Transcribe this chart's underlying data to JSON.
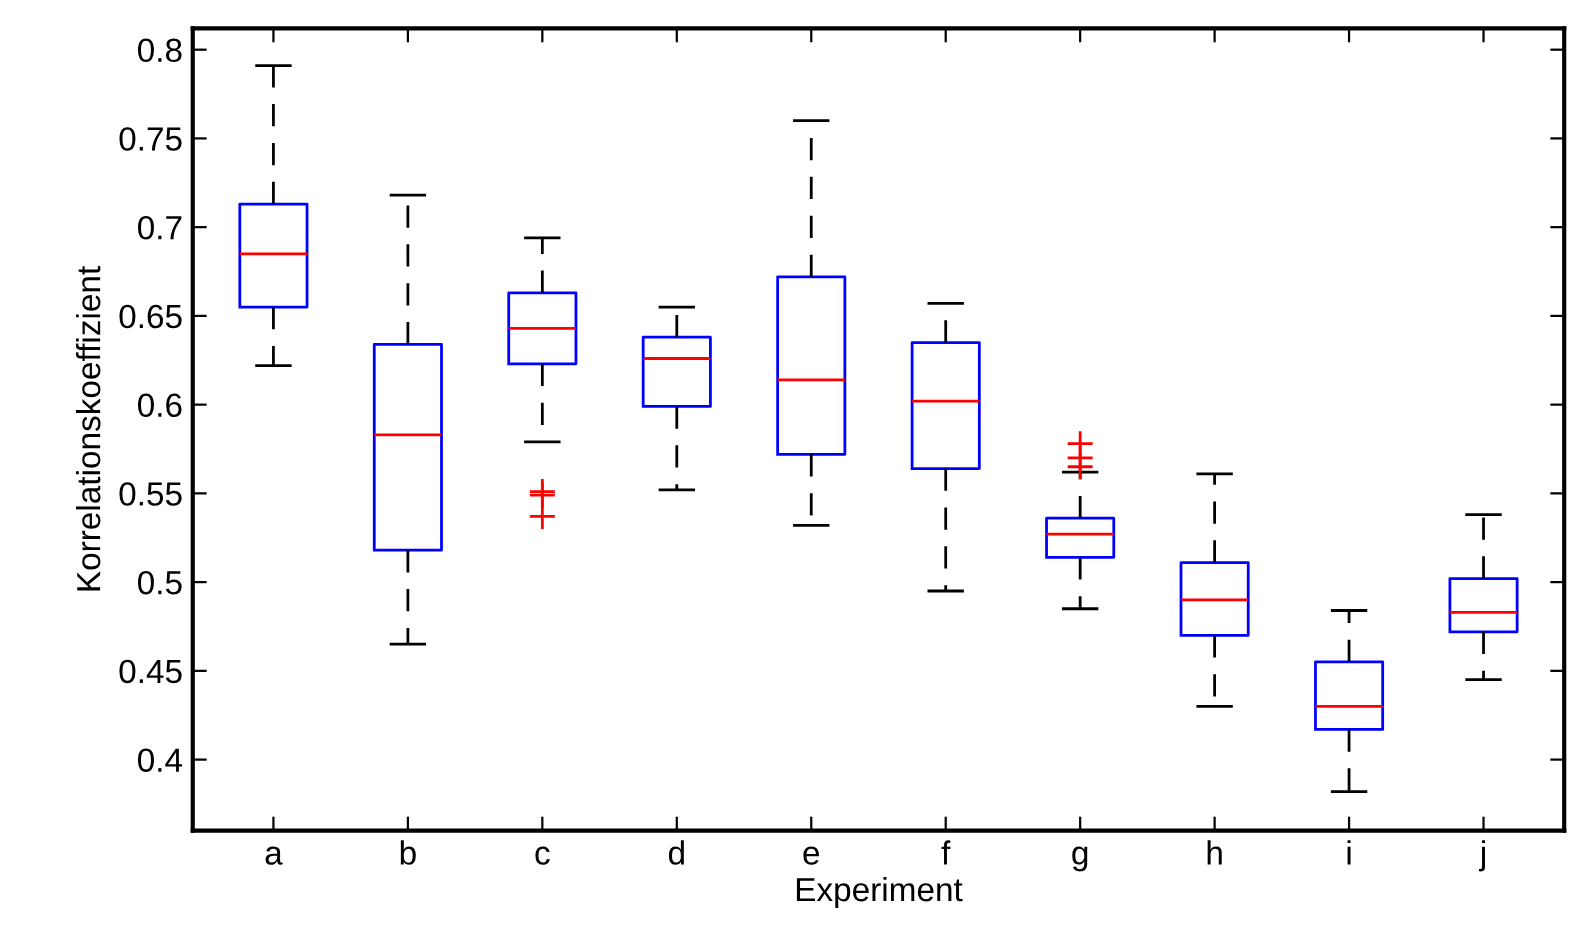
{
  "chart_data": {
    "type": "box",
    "xlabel": "Experiment",
    "ylabel": "Korrelationskoeffizient",
    "categories": [
      "a",
      "b",
      "c",
      "d",
      "e",
      "f",
      "g",
      "h",
      "i",
      "j"
    ],
    "boxes": [
      {
        "low": 0.622,
        "q1": 0.655,
        "median": 0.685,
        "q3": 0.713,
        "high": 0.791
      },
      {
        "low": 0.465,
        "q1": 0.518,
        "median": 0.583,
        "q3": 0.634,
        "high": 0.718
      },
      {
        "low": 0.579,
        "q1": 0.623,
        "median": 0.643,
        "q3": 0.663,
        "high": 0.694,
        "outliers": [
          0.551,
          0.549,
          0.537
        ]
      },
      {
        "low": 0.552,
        "q1": 0.599,
        "median": 0.626,
        "q3": 0.638,
        "high": 0.655
      },
      {
        "low": 0.532,
        "q1": 0.572,
        "median": 0.614,
        "q3": 0.672,
        "high": 0.76
      },
      {
        "low": 0.495,
        "q1": 0.564,
        "median": 0.602,
        "q3": 0.635,
        "high": 0.657
      },
      {
        "low": 0.485,
        "q1": 0.514,
        "median": 0.527,
        "q3": 0.536,
        "high": 0.562,
        "outliers": [
          0.578,
          0.57,
          0.565
        ]
      },
      {
        "low": 0.43,
        "q1": 0.47,
        "median": 0.49,
        "q3": 0.511,
        "high": 0.561
      },
      {
        "low": 0.382,
        "q1": 0.417,
        "median": 0.43,
        "q3": 0.455,
        "high": 0.484
      },
      {
        "low": 0.445,
        "q1": 0.472,
        "median": 0.483,
        "q3": 0.502,
        "high": 0.538
      }
    ],
    "color": "#0000ff",
    "ylim": [
      0.36,
      0.812
    ],
    "yticks": [
      0.4,
      0.45,
      0.5,
      0.55,
      0.6,
      0.65,
      0.7,
      0.75,
      0.8
    ],
    "grid": false
  }
}
